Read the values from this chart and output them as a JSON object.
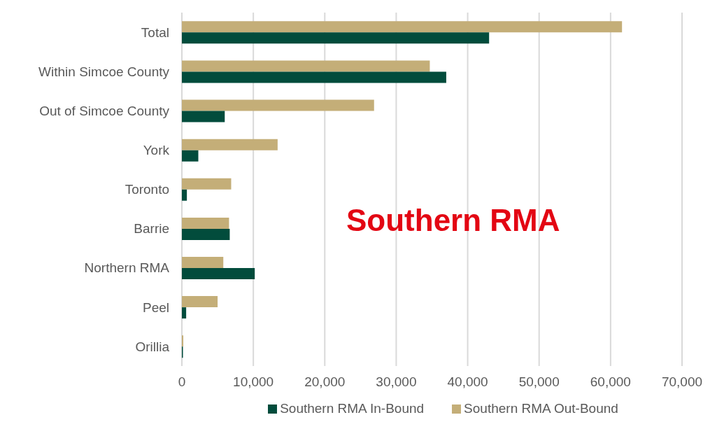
{
  "chart_data": {
    "type": "bar",
    "orientation": "horizontal",
    "categories": [
      "Total",
      "Within Simcoe County",
      "Out of Simcoe County",
      "York",
      "Toronto",
      "Barrie",
      "Northern RMA",
      "Peel",
      "Orillia"
    ],
    "series": [
      {
        "name": "Southern RMA Out-Bound",
        "color": "#c4ae78",
        "values": [
          61600,
          34700,
          26900,
          13400,
          6900,
          6600,
          5800,
          5000,
          200
        ]
      },
      {
        "name": "Southern RMA In-Bound",
        "color": "#024c3c",
        "values": [
          43000,
          37000,
          6000,
          2300,
          700,
          6700,
          10200,
          600,
          150
        ]
      }
    ],
    "xlim": [
      0,
      70000
    ],
    "xticks": [
      {
        "value": 0,
        "label": "0"
      },
      {
        "value": 10000,
        "label": "10,000"
      },
      {
        "value": 20000,
        "label": "20,000"
      },
      {
        "value": 30000,
        "label": "30,000"
      },
      {
        "value": 40000,
        "label": "40,000"
      },
      {
        "value": 50000,
        "label": "50,000"
      },
      {
        "value": 60000,
        "label": "60,000"
      },
      {
        "value": 70000,
        "label": "70,000"
      }
    ],
    "grid": "x",
    "legend": "bottom",
    "annotations": [
      "Southern RMA"
    ]
  }
}
